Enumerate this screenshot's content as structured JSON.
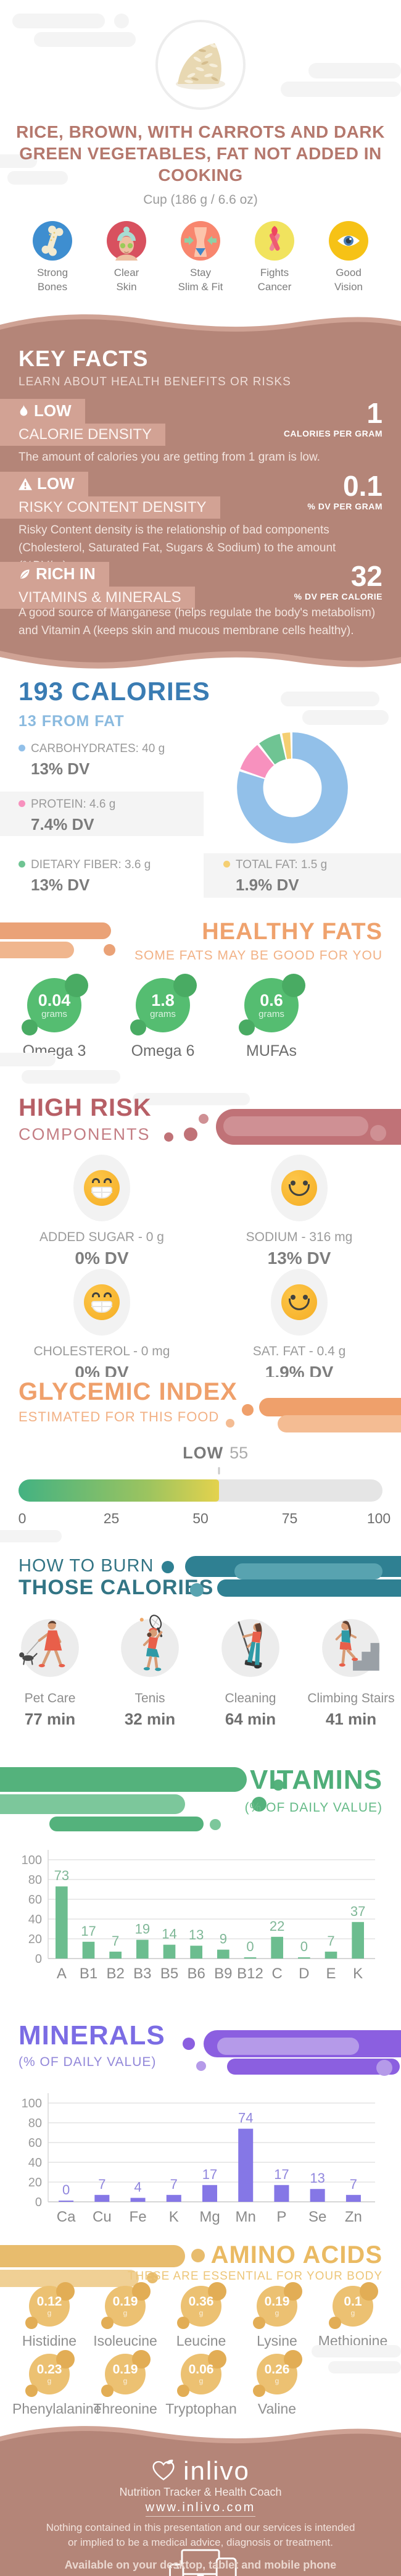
{
  "header": {
    "title": "RICE, BROWN, WITH CARROTS AND DARK GREEN VEGETABLES, FAT NOT ADDED IN COOKING",
    "serving": "Cup (186 g / 6.6 oz)",
    "benefits": [
      {
        "label1": "Strong",
        "label2": "Bones",
        "icon": "bone-icon",
        "color": "#3e8ed0"
      },
      {
        "label1": "Clear",
        "label2": "Skin",
        "icon": "face-icon",
        "color": "#d8515f"
      },
      {
        "label1": "Stay",
        "label2": "Slim & Fit",
        "icon": "waist-icon",
        "color": "#f8866e"
      },
      {
        "label1": "Fights",
        "label2": "Cancer",
        "icon": "ribbon-icon",
        "color": "#f1e35e"
      },
      {
        "label1": "Good",
        "label2": "Vision",
        "icon": "eye-icon",
        "color": "#f6c216"
      }
    ]
  },
  "key_facts": {
    "title": "KEY FACTS",
    "subtitle": "LEARN ABOUT HEALTH BENEFITS OR RISKS",
    "facts": [
      {
        "badge": "LOW",
        "label": "CALORIE DENSITY",
        "value": "1",
        "unit": "CALORIES PER GRAM",
        "icon": "flame-icon",
        "description": "The amount of calories you are getting from 1 gram is low."
      },
      {
        "badge": "LOW",
        "label": "RISKY CONTENT DENSITY",
        "value": "0.1",
        "unit": "% DV PER GRAM",
        "icon": "warning-icon",
        "description": "Risky Content density is the relationship of bad components (Cholesterol, Saturated Fat, Sugars & Sodium) to the amount (%DV/gr)."
      },
      {
        "badge": "RICH IN",
        "label": "VITAMINS & MINERALS",
        "value": "32",
        "unit": "% DV PER CALORIE",
        "icon": "leaf-icon",
        "description": "A good source of Manganese (helps regulate the body's metabolism) and Vitamin A (keeps skin and mucous membrane cells healthy)."
      }
    ]
  },
  "calories": {
    "title": "193 CALORIES",
    "subtitle": "13 FROM FAT",
    "legend": [
      {
        "name": "CARBOHYDRATES: 40 g",
        "dv": "13% DV",
        "color": "#92c0e9"
      },
      {
        "name": "PROTEIN: 4.6 g",
        "dv": "7.4% DV",
        "color": "#f791be"
      },
      {
        "name": "DIETARY FIBER: 3.6 g",
        "dv": "13% DV",
        "color": "#6fc493"
      },
      {
        "name": "TOTAL FAT: 1.5 g",
        "dv": "1.9% DV",
        "color": "#f5cf72"
      }
    ]
  },
  "healthy_fats": {
    "title": "HEALTHY FATS",
    "subtitle": "SOME FATS MAY BE GOOD FOR YOU",
    "items": [
      {
        "value": "0.04",
        "unit": "grams",
        "label": "Omega 3"
      },
      {
        "value": "1.8",
        "unit": "grams",
        "label": "Omega 6"
      },
      {
        "value": "0.6",
        "unit": "grams",
        "label": "MUFAs"
      }
    ]
  },
  "high_risk": {
    "title": "HIGH RISK",
    "subtitle": "COMPONENTS",
    "items": [
      {
        "label": "ADDED SUGAR - 0 g",
        "dv": "0% DV",
        "mood": "grin"
      },
      {
        "label": "SODIUM - 316 mg",
        "dv": "13% DV",
        "mood": "smile"
      },
      {
        "label": "CHOLESTEROL - 0 mg",
        "dv": "0% DV",
        "mood": "grin"
      },
      {
        "label": "SAT. FAT - 0.4 g",
        "dv": "1.9% DV",
        "mood": "smile"
      }
    ]
  },
  "glycemic_index": {
    "title": "GLYCEMIC INDEX",
    "subtitle": "ESTIMATED FOR THIS FOOD",
    "rating": "LOW",
    "value": 55,
    "scale": [
      "0",
      "25",
      "50",
      "75",
      "100"
    ]
  },
  "burn": {
    "title_line1": "HOW TO BURN",
    "title_line2": "THOSE CALORIES",
    "activities": [
      {
        "label": "Pet Care",
        "minutes": "77 min",
        "icon": "dog-walking-icon"
      },
      {
        "label": "Tenis",
        "minutes": "32 min",
        "icon": "tennis-icon"
      },
      {
        "label": "Cleaning",
        "minutes": "64 min",
        "icon": "cleaning-icon"
      },
      {
        "label": "Climbing Stairs",
        "minutes": "41 min",
        "icon": "climbing-stairs-icon"
      }
    ]
  },
  "vitamins": {
    "title": "VITAMINS",
    "subtitle": "(% OF DAILY VALUE)"
  },
  "minerals": {
    "title": "MINERALS",
    "subtitle": "(% OF DAILY VALUE)"
  },
  "amino_acids": {
    "title": "AMINO ACIDS",
    "subtitle": "THESE ARE ESSENTIAL FOR YOUR BODY",
    "items": [
      {
        "value": "0.12",
        "unit": "g",
        "label": "Histidine"
      },
      {
        "value": "0.19",
        "unit": "g",
        "label": "Isoleucine"
      },
      {
        "value": "0.36",
        "unit": "g",
        "label": "Leucine"
      },
      {
        "value": "0.19",
        "unit": "g",
        "label": "Lysine"
      },
      {
        "value": "0.1",
        "unit": "g",
        "label": "Methionine"
      },
      {
        "value": "0.23",
        "unit": "g",
        "label": "Phenylalanine"
      },
      {
        "value": "0.19",
        "unit": "g",
        "label": "Threonine"
      },
      {
        "value": "0.06",
        "unit": "g",
        "label": "Tryptophan"
      },
      {
        "value": "0.26",
        "unit": "g",
        "label": "Valine"
      }
    ]
  },
  "footer": {
    "brand": "inlivo",
    "tagline": "Nutrition Tracker & Health Coach",
    "url": "www.inlivo.com",
    "disclaimer": "Nothing contained in this presentation and our services is intended or implied to be a medical advice, diagnosis or treatment.",
    "availability": "Available on your desktop, tablet and mobile phone"
  },
  "palette": {
    "header_accent": "#b5786d",
    "keyfacts_bg": "#b48578",
    "keyfacts_badge": "#d2a294",
    "calories_accent": "#3a7cb3",
    "healthy_fats_accent": "#efa26d",
    "healthy_fats_green": "#55bd71",
    "high_risk_accent": "#b75f66",
    "smiley_yellow": "#f5b331",
    "glycemic_accent": "#efa06b",
    "burn_accent": "#337585",
    "vitamins_accent": "#4fae79",
    "minerals_accent": "#7b6ce4",
    "amino_accent": "#eaba63",
    "footer_bg": "#b48578"
  },
  "chart_data": [
    {
      "id": "calorie-breakdown",
      "type": "pie",
      "title": "193 CALORIES",
      "series": [
        {
          "name": "Carbohydrates",
          "value": 40,
          "unit": "g",
          "dv": "13% DV",
          "color": "#92c0e9"
        },
        {
          "name": "Protein",
          "value": 4.6,
          "unit": "g",
          "dv": "7.4% DV",
          "color": "#f791be"
        },
        {
          "name": "Dietary Fiber",
          "value": 3.6,
          "unit": "g",
          "dv": "13% DV",
          "color": "#6fc493"
        },
        {
          "name": "Total Fat",
          "value": 1.5,
          "unit": "g",
          "dv": "1.9% DV",
          "color": "#f5cf72"
        }
      ]
    },
    {
      "id": "glycemic-index",
      "type": "gauge",
      "label": "LOW",
      "value": 55,
      "range": [
        0,
        100
      ],
      "ticks": [
        0,
        25,
        50,
        75,
        100
      ]
    },
    {
      "id": "vitamins",
      "type": "bar",
      "title": "VITAMINS",
      "ylabel": "% of Daily Value",
      "categories": [
        "A",
        "B1",
        "B2",
        "B3",
        "B5",
        "B6",
        "B9",
        "B12",
        "C",
        "D",
        "E",
        "K"
      ],
      "values": [
        73,
        17,
        7,
        19,
        14,
        13,
        9,
        0,
        22,
        0,
        7,
        37
      ],
      "ylim": [
        0,
        100
      ],
      "yticks": [
        0,
        20,
        40,
        60,
        80,
        100
      ],
      "bar_color": "#6cbd8f",
      "label_color": "#7fb797"
    },
    {
      "id": "minerals",
      "type": "bar",
      "title": "MINERALS",
      "ylabel": "% of Daily Value",
      "categories": [
        "Ca",
        "Cu",
        "Fe",
        "K",
        "Mg",
        "Mn",
        "P",
        "Se",
        "Zn"
      ],
      "values": [
        0,
        7,
        4,
        7,
        17,
        74,
        17,
        13,
        7
      ],
      "ylim": [
        0,
        100
      ],
      "yticks": [
        0,
        20,
        40,
        60,
        80,
        100
      ],
      "bar_color": "#8577e6",
      "label_color": "#9086dd"
    }
  ]
}
